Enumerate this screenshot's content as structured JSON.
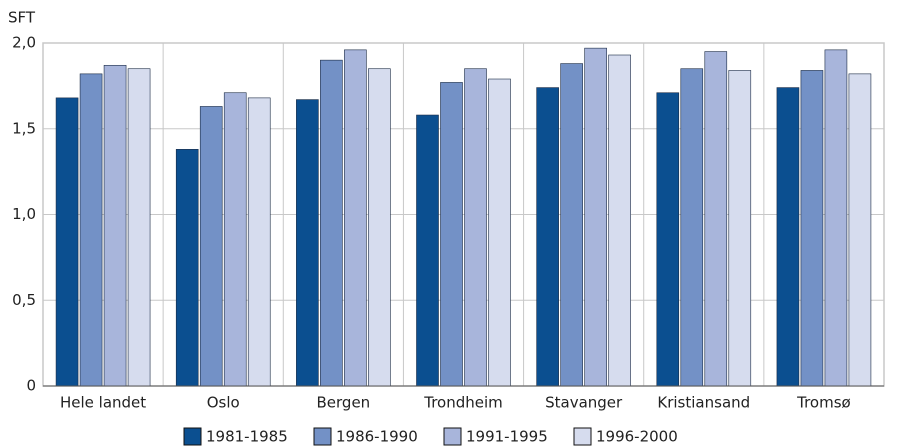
{
  "chart_data": {
    "type": "bar",
    "y_axis_label": "SFT",
    "categories": [
      "Hele landet",
      "Oslo",
      "Bergen",
      "Trondheim",
      "Stavanger",
      "Kristiansand",
      "Tromsø"
    ],
    "series": [
      {
        "name": "1981-1985",
        "color": "#0b4f90",
        "values": [
          1.68,
          1.38,
          1.67,
          1.58,
          1.74,
          1.71,
          1.74
        ]
      },
      {
        "name": "1986-1990",
        "color": "#7391c6",
        "values": [
          1.82,
          1.63,
          1.9,
          1.77,
          1.88,
          1.85,
          1.84
        ]
      },
      {
        "name": "1991-1995",
        "color": "#a8b5db",
        "values": [
          1.87,
          1.71,
          1.96,
          1.85,
          1.97,
          1.95,
          1.96
        ]
      },
      {
        "name": "1996-2000",
        "color": "#d6dcee",
        "values": [
          1.85,
          1.68,
          1.85,
          1.79,
          1.93,
          1.84,
          1.82
        ]
      }
    ],
    "ylim": [
      0,
      2
    ],
    "yticks": [
      0,
      {
        "value": 0.5,
        "label": "0,5"
      },
      {
        "value": 1,
        "label": "1,0"
      },
      {
        "value": 1.5,
        "label": "1,5"
      },
      {
        "value": 2,
        "label": "2,0"
      }
    ],
    "grid": true,
    "legend": "bottom"
  }
}
